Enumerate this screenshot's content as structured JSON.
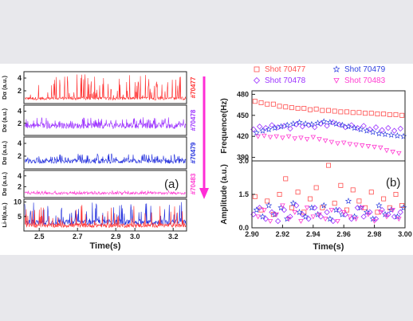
{
  "left_panel": {
    "panel_label": "(a)",
    "xlabel": "Time(s)",
    "xticks": [
      "2.5",
      "2.7",
      "2.9",
      "3.0",
      "3.2"
    ],
    "xlim": [
      2.42,
      3.27
    ],
    "rows": [
      {
        "ylabel": "Dα (a.u.)",
        "yticks": [
          "2",
          "4"
        ],
        "ylim": [
          0,
          5
        ],
        "shot": "#70477",
        "color": "#ff2d2d",
        "baseline": 0.8,
        "spike_max": 4.6
      },
      {
        "ylabel": "Dα (a.u.)",
        "yticks": [
          "2",
          "4"
        ],
        "ylim": [
          0,
          5
        ],
        "shot": "#70478",
        "color": "#9b30ff",
        "baseline": 1.6,
        "spike_max": 3.0
      },
      {
        "ylabel": "Dα (a.u.)",
        "yticks": [
          "2",
          "4"
        ],
        "ylim": [
          0,
          5
        ],
        "shot": "#70479",
        "color": "#1e2bdc",
        "baseline": 1.2,
        "spike_max": 2.4
      },
      {
        "ylabel": "Dα (a.u.)",
        "yticks": [
          "2",
          "4"
        ],
        "ylim": [
          0,
          5
        ],
        "shot": "#70483",
        "color": "#ff3ad1",
        "baseline": 0.8,
        "spike_max": 1.3
      },
      {
        "ylabel": "Li-II(a.u.)",
        "yticks": [
          "5",
          "10"
        ],
        "ylim": [
          0,
          11
        ],
        "shot": "",
        "color": "#1e2bdc",
        "baseline": 3,
        "spike_max": 10
      }
    ],
    "arrow_color": "#ff2dd6"
  },
  "chart_data": [
    {
      "type": "scatter",
      "ylabel": "Frequence(Hz)",
      "xlim": [
        2.9,
        3.0
      ],
      "ylim": [
        385,
        485
      ],
      "yticks": [
        "390",
        "420",
        "450",
        "480"
      ],
      "series": [
        {
          "name": "Shot 70477",
          "marker": "square",
          "color": "#ff4f4f",
          "x": [
            2.902,
            2.906,
            2.91,
            2.914,
            2.918,
            2.922,
            2.926,
            2.93,
            2.934,
            2.938,
            2.942,
            2.946,
            2.95,
            2.954,
            2.958,
            2.962,
            2.966,
            2.97,
            2.974,
            2.978,
            2.982,
            2.986,
            2.99,
            2.994,
            2.998
          ],
          "y": [
            470,
            468,
            466,
            466,
            463,
            462,
            461,
            460,
            460,
            458,
            459,
            457,
            457,
            456,
            455,
            455,
            454,
            454,
            453,
            453,
            452,
            452,
            451,
            451,
            450
          ]
        },
        {
          "name": "Shot 70478",
          "marker": "diamond",
          "color": "#9b30ff",
          "x": [
            2.901,
            2.905,
            2.909,
            2.913,
            2.917,
            2.921,
            2.925,
            2.929,
            2.933,
            2.937,
            2.941,
            2.945,
            2.949,
            2.953,
            2.957,
            2.961,
            2.965,
            2.969,
            2.973,
            2.977,
            2.981,
            2.985,
            2.989,
            2.993,
            2.997
          ],
          "y": [
            430,
            434,
            432,
            436,
            433,
            435,
            431,
            437,
            434,
            436,
            433,
            438,
            435,
            440,
            437,
            433,
            436,
            432,
            435,
            430,
            433,
            429,
            432,
            428,
            431
          ]
        },
        {
          "name": "Shot 70479",
          "marker": "star",
          "color": "#3040e0",
          "x": [
            2.903,
            2.907,
            2.911,
            2.915,
            2.919,
            2.923,
            2.927,
            2.931,
            2.935,
            2.939,
            2.943,
            2.947,
            2.951,
            2.955,
            2.959,
            2.963,
            2.967,
            2.971,
            2.975,
            2.979,
            2.983,
            2.987,
            2.991,
            2.995,
            2.999
          ],
          "y": [
            425,
            428,
            430,
            432,
            434,
            436,
            438,
            440,
            438,
            437,
            439,
            441,
            440,
            438,
            436,
            434,
            432,
            430,
            428,
            426,
            424,
            423,
            422,
            421,
            420
          ]
        },
        {
          "name": "Shot 70483",
          "marker": "triangle-down",
          "color": "#ff3ad1",
          "x": [
            2.904,
            2.908,
            2.912,
            2.916,
            2.92,
            2.924,
            2.928,
            2.932,
            2.936,
            2.94,
            2.944,
            2.948,
            2.952,
            2.956,
            2.96,
            2.964,
            2.968,
            2.972,
            2.976,
            2.98,
            2.984,
            2.988,
            2.992,
            2.996
          ],
          "y": [
            420,
            421,
            419,
            420,
            418,
            420,
            417,
            418,
            416,
            419,
            416,
            414,
            412,
            410,
            411,
            409,
            408,
            407,
            406,
            405,
            404,
            400,
            398,
            396
          ]
        }
      ]
    },
    {
      "type": "scatter",
      "ylabel": "Amplitude (a.u.)",
      "xlabel": "Time(s)",
      "xlim": [
        2.9,
        3.0
      ],
      "ylim": [
        0,
        3.0
      ],
      "xticks": [
        "2.90",
        "2.92",
        "2.94",
        "2.96",
        "2.98",
        "3.00"
      ],
      "yticks": [
        "0.0",
        "1.5",
        "3.0"
      ],
      "series": [
        {
          "name": "Shot 70477",
          "marker": "square",
          "color": "#ff4f4f",
          "x": [
            2.902,
            2.906,
            2.91,
            2.914,
            2.918,
            2.922,
            2.926,
            2.93,
            2.934,
            2.938,
            2.942,
            2.946,
            2.95,
            2.954,
            2.958,
            2.962,
            2.966,
            2.97,
            2.974,
            2.978,
            2.982,
            2.986,
            2.99,
            2.994,
            2.998
          ],
          "y": [
            1.4,
            0.8,
            1.2,
            0.6,
            1.5,
            2.2,
            0.9,
            1.6,
            0.7,
            1.3,
            1.8,
            0.9,
            2.8,
            1.1,
            1.9,
            0.8,
            1.7,
            1.2,
            0.9,
            1.6,
            0.7,
            1.3,
            0.9,
            1.5,
            1.0
          ]
        },
        {
          "name": "Shot 70478",
          "marker": "diamond",
          "color": "#9b30ff",
          "x": [
            2.901,
            2.905,
            2.909,
            2.913,
            2.917,
            2.921,
            2.925,
            2.929,
            2.933,
            2.937,
            2.941,
            2.945,
            2.949,
            2.953,
            2.957,
            2.961,
            2.965,
            2.969,
            2.973,
            2.977,
            2.981,
            2.985,
            2.989,
            2.993,
            2.997
          ],
          "y": [
            0.6,
            0.9,
            0.4,
            0.7,
            0.3,
            0.8,
            0.5,
            1.0,
            0.6,
            0.4,
            0.9,
            0.5,
            0.7,
            0.3,
            0.8,
            0.6,
            0.4,
            0.9,
            0.5,
            0.7,
            0.4,
            0.8,
            0.6,
            0.5,
            0.7
          ]
        },
        {
          "name": "Shot 70479",
          "marker": "star",
          "color": "#3040e0",
          "x": [
            2.903,
            2.907,
            2.911,
            2.915,
            2.919,
            2.923,
            2.927,
            2.931,
            2.935,
            2.939,
            2.943,
            2.947,
            2.951,
            2.955,
            2.959,
            2.963,
            2.967,
            2.971,
            2.975,
            2.979,
            2.983,
            2.987,
            2.991,
            2.995,
            2.999
          ],
          "y": [
            0.8,
            0.5,
            1.0,
            0.6,
            0.9,
            0.4,
            1.1,
            0.7,
            0.5,
            0.9,
            0.6,
            1.0,
            0.4,
            0.8,
            0.6,
            1.2,
            0.5,
            0.9,
            0.7,
            0.4,
            1.0,
            0.6,
            0.8,
            0.5,
            0.9
          ]
        },
        {
          "name": "Shot 70483",
          "marker": "triangle-down",
          "color": "#ff3ad1",
          "x": [
            2.904,
            2.908,
            2.912,
            2.916,
            2.92,
            2.924,
            2.928,
            2.932,
            2.936,
            2.94,
            2.944,
            2.948,
            2.952,
            2.956,
            2.96,
            2.964,
            2.968,
            2.972,
            2.976,
            2.98,
            2.984,
            2.988,
            2.992,
            2.996
          ],
          "y": [
            0.5,
            0.8,
            0.3,
            0.6,
            1.0,
            0.4,
            0.7,
            0.3,
            0.9,
            0.5,
            0.6,
            0.4,
            0.8,
            0.3,
            0.7,
            0.5,
            0.4,
            0.9,
            0.6,
            0.3,
            0.7,
            0.5,
            0.8,
            0.4
          ]
        }
      ]
    }
  ],
  "right_panel": {
    "panel_label": "(b)",
    "legend": [
      {
        "label": "Shot 70477",
        "marker": "square",
        "color": "#ff4f4f"
      },
      {
        "label": "Shot 70479",
        "marker": "star",
        "color": "#3040e0"
      },
      {
        "label": "Shot 70478",
        "marker": "diamond",
        "color": "#9b30ff"
      },
      {
        "label": "Shot 70483",
        "marker": "triangle-down",
        "color": "#ff3ad1"
      }
    ]
  }
}
